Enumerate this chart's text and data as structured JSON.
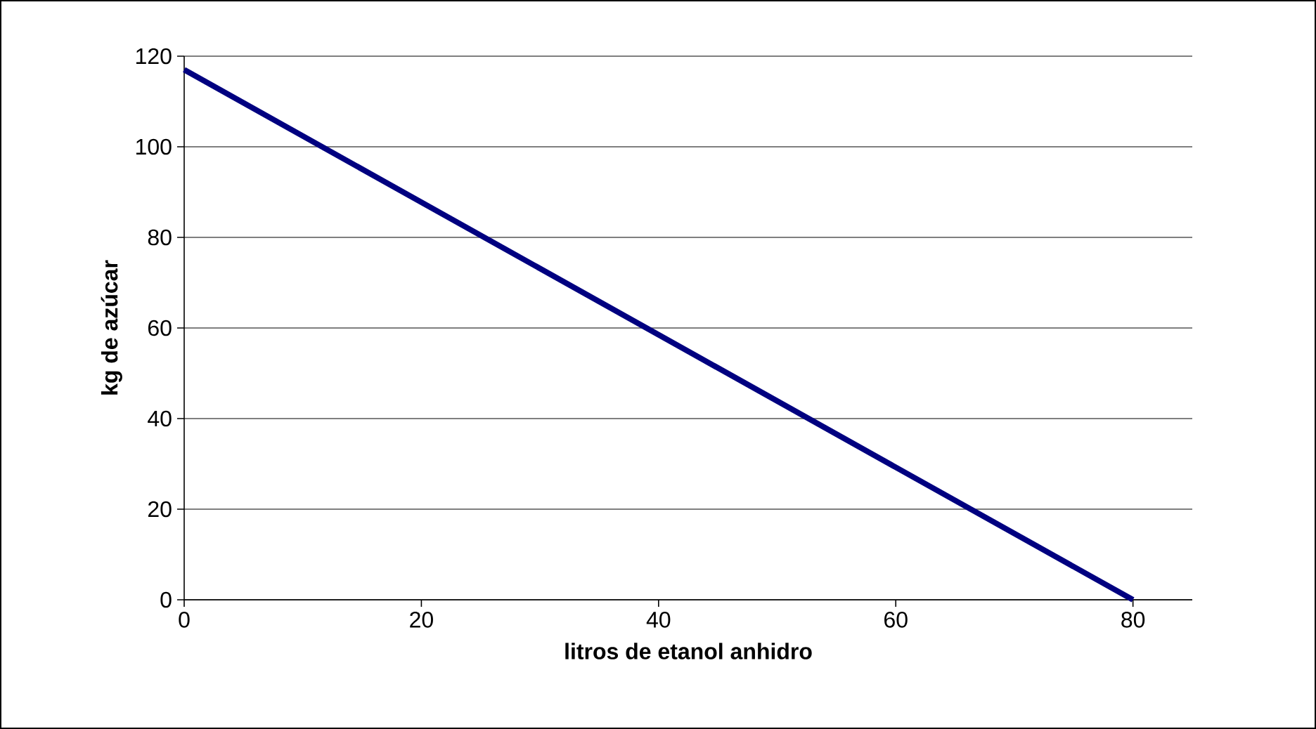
{
  "chart_data": {
    "type": "line",
    "xlabel": "litros de etanol anhidro",
    "ylabel": "kg de azúcar",
    "x": [
      0,
      80
    ],
    "series": [
      {
        "color": "#000080",
        "values": [
          117,
          0
        ]
      }
    ],
    "xlim": [
      0,
      85
    ],
    "ylim": [
      0,
      120
    ],
    "xticks": [
      0,
      20,
      40,
      60,
      80
    ],
    "yticks": [
      0,
      20,
      40,
      60,
      80,
      100,
      120
    ],
    "grid": "y"
  }
}
